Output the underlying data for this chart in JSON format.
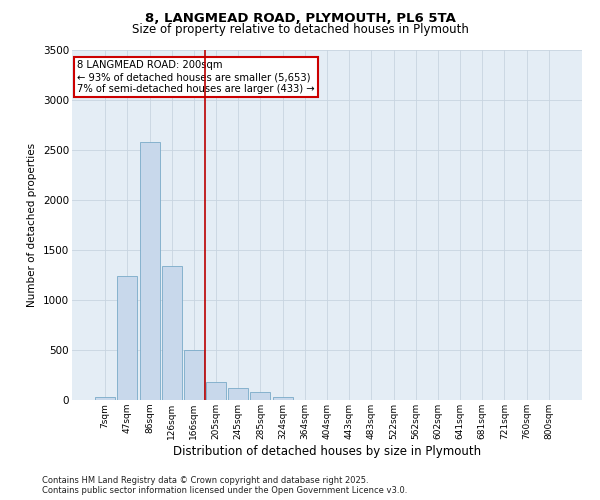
{
  "title1": "8, LANGMEAD ROAD, PLYMOUTH, PL6 5TA",
  "title2": "Size of property relative to detached houses in Plymouth",
  "xlabel": "Distribution of detached houses by size in Plymouth",
  "ylabel": "Number of detached properties",
  "categories": [
    "7sqm",
    "47sqm",
    "86sqm",
    "126sqm",
    "166sqm",
    "205sqm",
    "245sqm",
    "285sqm",
    "324sqm",
    "364sqm",
    "404sqm",
    "443sqm",
    "483sqm",
    "522sqm",
    "562sqm",
    "602sqm",
    "641sqm",
    "681sqm",
    "721sqm",
    "760sqm",
    "800sqm"
  ],
  "values": [
    30,
    1240,
    2580,
    1340,
    500,
    185,
    120,
    80,
    30,
    5,
    1,
    0,
    0,
    0,
    0,
    0,
    0,
    0,
    0,
    0,
    0
  ],
  "bar_color": "#c8d8eb",
  "bar_edge_color": "#7aaac8",
  "grid_color": "#c8d4e0",
  "bg_color": "#e4edf5",
  "vline_color": "#bb0000",
  "vline_x_index": 4.5,
  "annotation_text": "8 LANGMEAD ROAD: 200sqm\n← 93% of detached houses are smaller (5,653)\n7% of semi-detached houses are larger (433) →",
  "annotation_box_color": "#cc0000",
  "ylim": [
    0,
    3500
  ],
  "yticks": [
    0,
    500,
    1000,
    1500,
    2000,
    2500,
    3000,
    3500
  ],
  "footer1": "Contains HM Land Registry data © Crown copyright and database right 2025.",
  "footer2": "Contains public sector information licensed under the Open Government Licence v3.0."
}
